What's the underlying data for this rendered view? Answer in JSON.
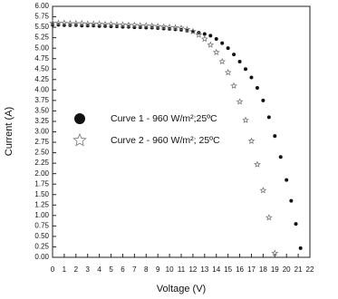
{
  "chart_data": {
    "type": "scatter",
    "x_label": "Voltage (V)",
    "y_label": "Current (A)",
    "xlim": [
      0,
      22
    ],
    "xticks": [
      0,
      1,
      2,
      3,
      4,
      5,
      6,
      7,
      8,
      9,
      10,
      11,
      12,
      13,
      14,
      15,
      16,
      17,
      18,
      19,
      20,
      21,
      22
    ],
    "ylim": [
      0,
      6
    ],
    "yticks": [
      {
        "value": 0,
        "label": "0.00"
      },
      {
        "value": 0.25,
        "label": "0.25"
      },
      {
        "value": 0.5,
        "label": "0.50"
      },
      {
        "value": 0.75,
        "label": "0.75"
      },
      {
        "value": 1,
        "label": "1.00"
      },
      {
        "value": 1.25,
        "label": "1.25"
      },
      {
        "value": 1.5,
        "label": "1.50"
      },
      {
        "value": 1.75,
        "label": "1.75"
      },
      {
        "value": 2,
        "label": "2.00"
      },
      {
        "value": 2.25,
        "label": "2.25"
      },
      {
        "value": 2.5,
        "label": "2.50"
      },
      {
        "value": 2.75,
        "label": "2.75"
      },
      {
        "value": 3,
        "label": "3.00"
      },
      {
        "value": 3.25,
        "label": "3.25"
      },
      {
        "value": 3.5,
        "label": "3.50"
      },
      {
        "value": 3.75,
        "label": "3.75"
      },
      {
        "value": 4,
        "label": "4.00"
      },
      {
        "value": 4.25,
        "label": "4.25"
      },
      {
        "value": 4.5,
        "label": "4.50"
      },
      {
        "value": 4.75,
        "label": "4.75"
      },
      {
        "value": 5,
        "label": "5.00"
      },
      {
        "value": 5.25,
        "label": "5.25"
      },
      {
        "value": 5.5,
        "label": "5.50"
      },
      {
        "value": 5.75,
        "label": "5.75"
      },
      {
        "value": 6,
        "label": "6.00"
      }
    ],
    "grid": false,
    "series": [
      {
        "name": "Curve 1 - 960 W/m²;25ºC",
        "color": "#111111",
        "marker": "circle",
        "x": [
          0,
          0.5,
          1,
          1.5,
          2,
          2.5,
          3,
          3.5,
          4,
          4.5,
          5,
          5.5,
          6,
          6.5,
          7,
          7.5,
          8,
          8.5,
          9,
          9.5,
          10,
          10.5,
          11,
          11.5,
          12,
          12.5,
          13,
          13.5,
          14,
          14.5,
          15,
          15.5,
          16,
          16.5,
          17,
          17.5,
          18,
          18.5,
          19,
          19.5,
          20,
          20.4,
          20.8,
          21.2
        ],
        "values": [
          5.56,
          5.56,
          5.55,
          5.55,
          5.55,
          5.54,
          5.54,
          5.54,
          5.53,
          5.53,
          5.52,
          5.52,
          5.51,
          5.51,
          5.5,
          5.5,
          5.49,
          5.49,
          5.48,
          5.47,
          5.46,
          5.45,
          5.44,
          5.42,
          5.4,
          5.37,
          5.34,
          5.3,
          5.22,
          5.12,
          5.0,
          4.85,
          4.68,
          4.5,
          4.3,
          4.05,
          3.75,
          3.35,
          2.9,
          2.4,
          1.85,
          1.35,
          0.8,
          0.22
        ]
      },
      {
        "name": "Curve 2 -  960  W/m²; 25ºC",
        "color": "#777777",
        "marker": "star",
        "x": [
          0,
          0.5,
          1,
          1.5,
          2,
          2.5,
          3,
          3.5,
          4,
          4.5,
          5,
          5.5,
          6,
          6.5,
          7,
          7.5,
          8,
          8.5,
          9,
          9.5,
          10,
          10.5,
          11,
          11.5,
          12,
          12.5,
          13,
          13.5,
          14,
          14.5,
          15,
          15.5,
          16,
          16.5,
          17,
          17.5,
          18,
          18.5,
          19
        ],
        "values": [
          5.6,
          5.6,
          5.6,
          5.59,
          5.59,
          5.59,
          5.58,
          5.58,
          5.58,
          5.57,
          5.57,
          5.56,
          5.56,
          5.55,
          5.55,
          5.54,
          5.54,
          5.53,
          5.52,
          5.51,
          5.5,
          5.49,
          5.48,
          5.45,
          5.4,
          5.32,
          5.22,
          5.08,
          4.9,
          4.68,
          4.42,
          4.1,
          3.72,
          3.28,
          2.78,
          2.22,
          1.6,
          0.95,
          0.1
        ]
      }
    ]
  }
}
